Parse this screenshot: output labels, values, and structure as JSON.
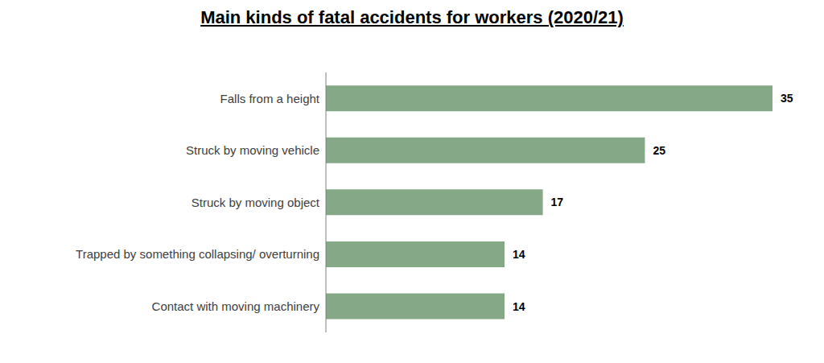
{
  "chart_data": {
    "type": "bar",
    "title": "Main kinds of fatal accidents for workers (2020/21)",
    "orientation": "horizontal",
    "categories": [
      "Falls from a height",
      "Struck by moving vehicle",
      "Struck by moving object",
      "Trapped by something collapsing/ overturning",
      "Contact with moving machinery"
    ],
    "values": [
      35,
      25,
      17,
      14,
      14
    ],
    "color": "#85a886",
    "xlim": [
      0,
      35
    ],
    "data_labels": true,
    "tick_labels": "y",
    "grid": false
  }
}
